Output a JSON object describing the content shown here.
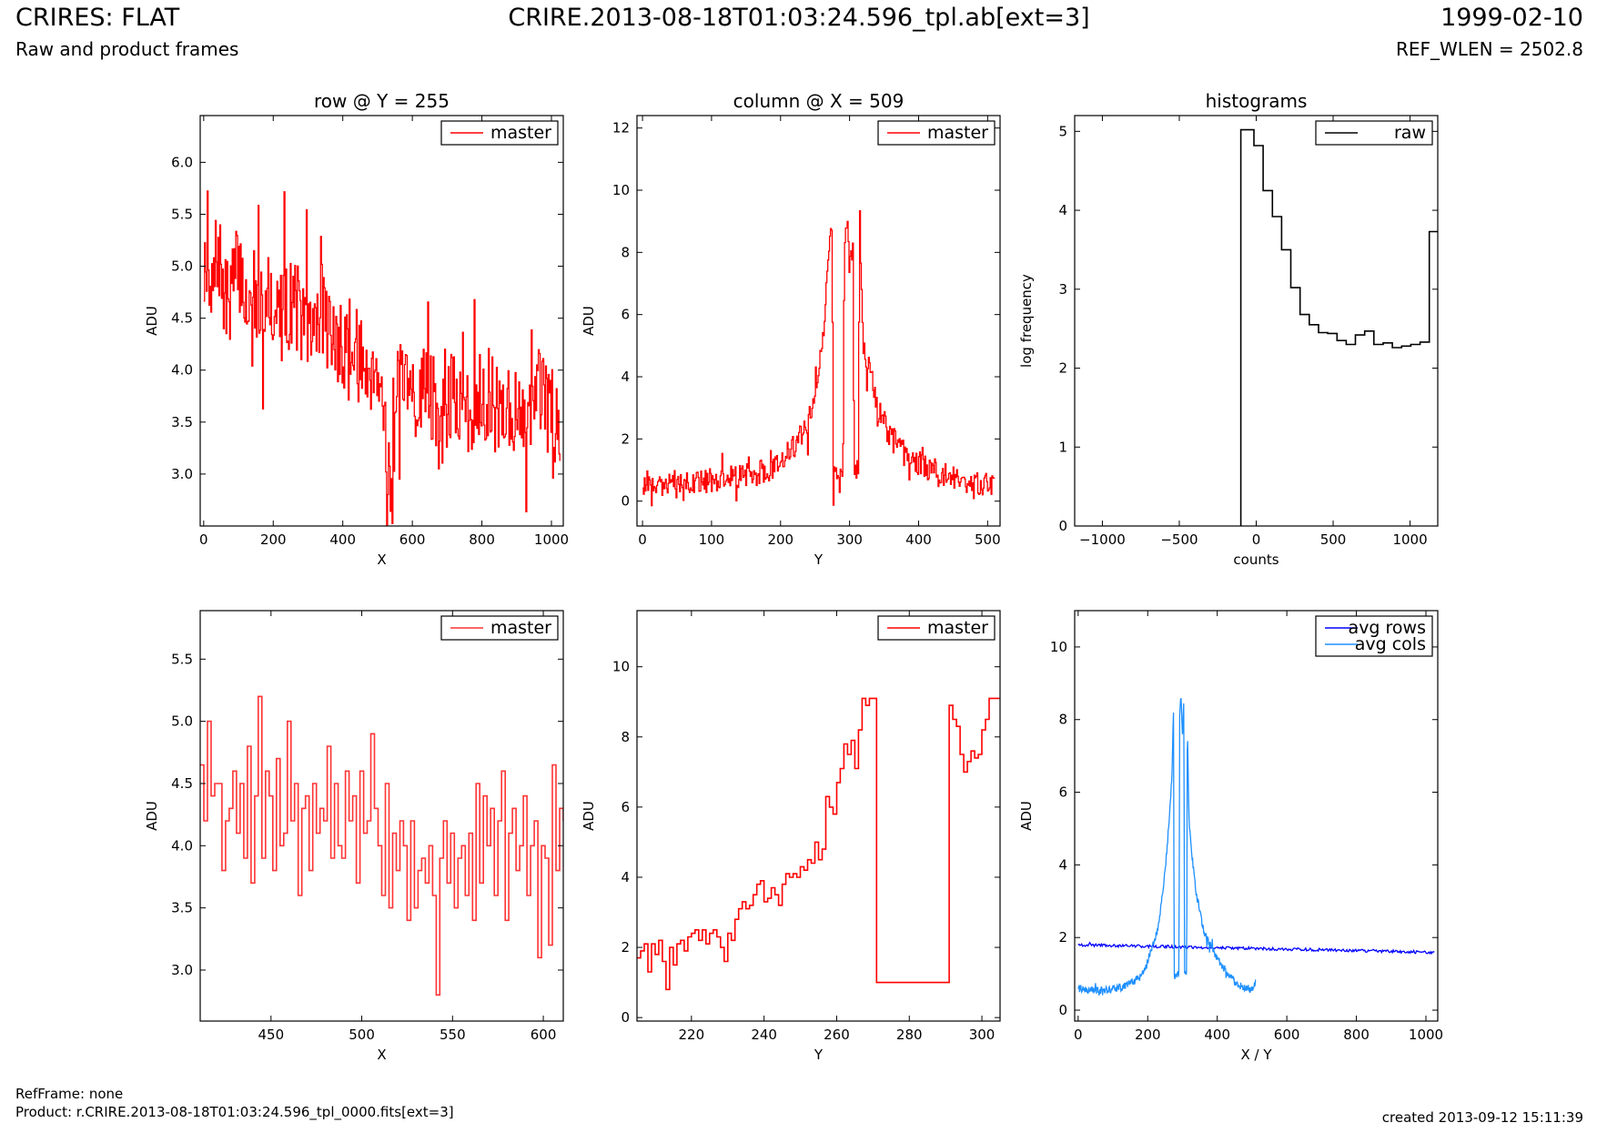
{
  "header": {
    "title": "CRIRES: FLAT",
    "subtitle": "Raw and product frames",
    "center_title": "CRIRE.2013-08-18T01:03:24.596_tpl.ab[ext=3]",
    "date": "1999-02-10",
    "ref_wlen": "REF_WLEN = 2502.8"
  },
  "footer": {
    "ref_frame": "RefFrame: none",
    "product": "Product: r.CRIRE.2013-08-18T01:03:24.596_tpl_0000.fits[ext=3]",
    "created": "created 2013-09-12 15:11:39"
  },
  "colors": {
    "master": "#ff0000",
    "raw": "#000000",
    "avg_rows": "#0000ff",
    "avg_cols": "#1e90ff"
  },
  "chart_data": [
    {
      "id": "row",
      "type": "line",
      "title": "row @ Y = 255",
      "xlabel": "X",
      "ylabel": "ADU",
      "xlim": [
        -10,
        1034
      ],
      "ylim": [
        2.5,
        6.45
      ],
      "xticks": [
        0,
        200,
        400,
        600,
        800,
        1000
      ],
      "yticks": [
        3.0,
        3.5,
        4.0,
        4.5,
        5.0,
        5.5,
        6.0
      ],
      "legend": "top-right",
      "series": [
        {
          "name": "master",
          "color": "#ff0000",
          "step": true,
          "x": [
            0,
            8,
            16,
            40,
            60,
            100,
            140,
            180,
            220,
            260,
            300,
            340,
            380,
            420,
            460,
            500,
            540,
            560,
            600,
            640,
            680,
            720,
            760,
            800,
            840,
            880,
            920,
            960,
            1000,
            1024
          ],
          "y": [
            4.9,
            5.6,
            4.5,
            5.2,
            4.6,
            5.0,
            4.4,
            4.8,
            4.5,
            4.7,
            4.3,
            4.6,
            4.2,
            4.3,
            4.0,
            4.1,
            2.8,
            3.9,
            3.6,
            4.0,
            3.4,
            3.8,
            3.5,
            3.9,
            3.6,
            3.7,
            3.4,
            3.8,
            3.6,
            3.5
          ],
          "band": [
            0.45,
            0.8
          ]
        }
      ]
    },
    {
      "id": "column",
      "type": "line",
      "title": "column @ X = 509",
      "xlabel": "Y",
      "ylabel": "ADU",
      "xlim": [
        -8,
        518
      ],
      "ylim": [
        -0.8,
        12.4
      ],
      "xticks": [
        0,
        100,
        200,
        300,
        400,
        500
      ],
      "yticks": [
        0,
        2,
        4,
        6,
        8,
        10,
        12
      ],
      "legend": "top-right",
      "series": [
        {
          "name": "master",
          "color": "#ff0000",
          "step": true,
          "x": [
            0,
            40,
            80,
            120,
            150,
            180,
            200,
            220,
            240,
            250,
            260,
            265,
            270,
            274,
            276,
            290,
            292,
            296,
            300,
            304,
            306,
            312,
            314,
            318,
            320,
            330,
            340,
            360,
            380,
            400,
            420,
            440,
            460,
            480,
            510
          ],
          "y": [
            0.6,
            0.5,
            0.6,
            0.7,
            0.8,
            1.0,
            1.3,
            1.8,
            2.5,
            3.5,
            5.0,
            6.5,
            8.0,
            9.0,
            1.0,
            1.0,
            8.5,
            9.0,
            8.0,
            8.8,
            1.0,
            1.0,
            9.6,
            5.5,
            5.0,
            4.0,
            3.0,
            2.0,
            1.5,
            1.2,
            1.0,
            0.8,
            0.7,
            0.6,
            0.6
          ],
          "band": [
            0.4,
            0.8
          ]
        }
      ]
    },
    {
      "id": "histograms",
      "type": "line",
      "title": "histograms",
      "xlabel": "counts",
      "ylabel": "log frequency",
      "xlim": [
        -1180,
        1180
      ],
      "ylim": [
        0,
        5.2
      ],
      "xticks": [
        -1000,
        -500,
        0,
        500,
        1000
      ],
      "yticks": [
        0,
        1,
        2,
        3,
        4,
        5
      ],
      "legend": "top-right",
      "series": [
        {
          "name": "raw",
          "color": "#000000",
          "step": true,
          "x": [
            -100,
            -100,
            -15,
            45,
            105,
            165,
            225,
            285,
            345,
            405,
            465,
            525,
            585,
            645,
            705,
            765,
            825,
            885,
            945,
            1005,
            1065,
            1125,
            1180
          ],
          "y": [
            0,
            5.02,
            4.82,
            4.25,
            3.92,
            3.5,
            3.02,
            2.68,
            2.55,
            2.45,
            2.44,
            2.35,
            2.3,
            2.42,
            2.47,
            2.3,
            2.32,
            2.26,
            2.28,
            2.3,
            2.33,
            3.73,
            3.73
          ]
        }
      ]
    },
    {
      "id": "row-zoom",
      "type": "line",
      "title": "",
      "xlabel": "X",
      "ylabel": "ADU",
      "xlim": [
        411,
        611
      ],
      "ylim": [
        2.59,
        5.89
      ],
      "xticks": [
        450,
        500,
        550,
        600
      ],
      "yticks": [
        3.0,
        3.5,
        4.0,
        4.5,
        5.0,
        5.5
      ],
      "legend": "top-right",
      "series": [
        {
          "name": "master",
          "color": "#ff3333",
          "step": true,
          "x": [
            411,
            413,
            415,
            417,
            419,
            421,
            423,
            425,
            427,
            429,
            431,
            433,
            435,
            437,
            439,
            441,
            443,
            445,
            447,
            449,
            451,
            453,
            455,
            457,
            459,
            461,
            463,
            465,
            467,
            469,
            471,
            473,
            475,
            477,
            479,
            481,
            483,
            485,
            487,
            489,
            491,
            493,
            495,
            497,
            499,
            501,
            503,
            505,
            507,
            509,
            511,
            513,
            515,
            517,
            519,
            521,
            523,
            525,
            527,
            529,
            531,
            533,
            535,
            537,
            539,
            541,
            543,
            545,
            547,
            549,
            551,
            553,
            555,
            557,
            559,
            561,
            563,
            565,
            567,
            569,
            571,
            573,
            575,
            577,
            579,
            581,
            583,
            585,
            587,
            589,
            591,
            593,
            595,
            597,
            599,
            601,
            603,
            605,
            607,
            609,
            611
          ],
          "y": [
            4.65,
            4.2,
            5.0,
            4.4,
            4.5,
            4.5,
            3.8,
            4.2,
            4.3,
            4.6,
            4.1,
            4.5,
            3.9,
            4.8,
            3.7,
            4.4,
            5.2,
            3.9,
            4.6,
            4.4,
            3.8,
            4.7,
            4.0,
            4.1,
            5.0,
            4.2,
            4.5,
            3.6,
            4.3,
            4.4,
            3.8,
            4.5,
            4.1,
            4.3,
            4.2,
            4.8,
            3.9,
            4.5,
            4.0,
            3.9,
            4.6,
            4.2,
            4.4,
            3.7,
            4.6,
            4.1,
            4.2,
            4.9,
            4.3,
            4.0,
            3.6,
            4.5,
            3.5,
            4.1,
            3.8,
            4.2,
            4.0,
            3.4,
            4.2,
            3.5,
            3.8,
            3.9,
            3.7,
            4.0,
            3.6,
            2.8,
            3.9,
            4.2,
            3.7,
            4.1,
            3.5,
            3.9,
            4.0,
            3.6,
            4.1,
            3.4,
            4.5,
            3.7,
            4.4,
            4.0,
            4.3,
            3.6,
            4.2,
            4.6,
            3.4,
            4.1,
            4.3,
            3.8,
            4.0,
            4.4,
            3.6,
            4.0,
            4.2,
            3.1,
            4.0,
            3.9,
            3.2,
            4.65,
            3.8,
            4.3,
            4.2
          ]
        }
      ]
    },
    {
      "id": "column-zoom",
      "type": "line",
      "title": "",
      "xlabel": "Y",
      "ylabel": "ADU",
      "xlim": [
        205,
        305
      ],
      "ylim": [
        -0.1,
        11.6
      ],
      "xticks": [
        220,
        240,
        260,
        280,
        300
      ],
      "yticks": [
        0,
        2,
        4,
        6,
        8,
        10
      ],
      "legend": "top-right",
      "series": [
        {
          "name": "master",
          "color": "#ff0000",
          "step": true,
          "x": [
            205,
            206,
            207,
            208,
            209,
            210,
            211,
            212,
            213,
            214,
            215,
            216,
            217,
            218,
            219,
            220,
            221,
            222,
            223,
            224,
            225,
            226,
            227,
            228,
            229,
            230,
            231,
            232,
            233,
            234,
            235,
            236,
            237,
            238,
            239,
            240,
            241,
            242,
            243,
            244,
            245,
            246,
            247,
            248,
            249,
            250,
            251,
            252,
            253,
            254,
            255,
            256,
            257,
            258,
            259,
            260,
            261,
            262,
            263,
            264,
            265,
            266,
            267,
            268,
            269,
            270,
            271,
            272,
            273,
            274,
            275,
            276,
            277,
            278,
            279,
            280,
            281,
            282,
            283,
            284,
            285,
            286,
            287,
            288,
            289,
            290,
            291,
            292,
            293,
            294,
            295,
            296,
            297,
            298,
            299,
            300,
            301,
            302,
            303,
            304,
            305
          ],
          "y": [
            1.7,
            1.9,
            2.1,
            1.3,
            2.1,
            1.8,
            2.2,
            1.6,
            0.8,
            2.0,
            1.5,
            2.1,
            2.2,
            1.9,
            2.3,
            2.4,
            2.5,
            2.2,
            2.5,
            2.1,
            2.4,
            2.5,
            2.3,
            2.0,
            1.6,
            2.4,
            2.2,
            2.8,
            3.1,
            3.3,
            3.1,
            3.2,
            3.5,
            3.8,
            3.9,
            3.3,
            3.4,
            3.7,
            3.5,
            3.2,
            3.8,
            4.1,
            4.0,
            4.1,
            4.0,
            4.3,
            4.2,
            4.5,
            4.4,
            5.0,
            4.5,
            4.8,
            6.3,
            6.0,
            5.8,
            6.7,
            7.1,
            7.8,
            7.5,
            7.9,
            7.1,
            8.2,
            9.1,
            8.9,
            9.1,
            9.1,
            1.0,
            1.0,
            1.0,
            1.0,
            1.0,
            1.0,
            1.0,
            1.0,
            1.0,
            1.0,
            1.0,
            1.0,
            1.0,
            1.0,
            1.0,
            1.0,
            1.0,
            1.0,
            1.0,
            1.0,
            8.9,
            8.5,
            8.3,
            7.5,
            7.0,
            7.3,
            7.6,
            7.4,
            7.5,
            8.2,
            8.5,
            9.1,
            9.1,
            9.1,
            9.1
          ]
        }
      ]
    },
    {
      "id": "averages",
      "type": "line",
      "title": "",
      "xlabel": "X / Y",
      "ylabel": "ADU",
      "xlim": [
        -10,
        1034
      ],
      "ylim": [
        -0.3,
        11.0
      ],
      "xticks": [
        0,
        200,
        400,
        600,
        800,
        1000
      ],
      "yticks": [
        0,
        2,
        4,
        6,
        8,
        10
      ],
      "legend": "top-right",
      "series": [
        {
          "name": "avg rows",
          "color": "#0000ff",
          "x": [
            0,
            100,
            200,
            300,
            400,
            500,
            600,
            700,
            800,
            900,
            1024
          ],
          "y": [
            1.8,
            1.78,
            1.76,
            1.74,
            1.72,
            1.7,
            1.68,
            1.66,
            1.64,
            1.62,
            1.58
          ],
          "band": [
            0.04,
            0.05
          ]
        },
        {
          "name": "avg cols",
          "color": "#1e90ff",
          "x": [
            0,
            40,
            80,
            120,
            150,
            180,
            200,
            210,
            220,
            230,
            240,
            250,
            260,
            270,
            274,
            276,
            290,
            292,
            296,
            300,
            304,
            306,
            312,
            314,
            318,
            320,
            330,
            340,
            360,
            380,
            400,
            420,
            440,
            460,
            480,
            500,
            511
          ],
          "y": [
            0.6,
            0.55,
            0.55,
            0.6,
            0.75,
            0.95,
            1.3,
            1.7,
            1.9,
            2.3,
            3.0,
            3.8,
            5.0,
            6.5,
            8.5,
            1.0,
            1.0,
            8.2,
            8.6,
            7.5,
            8.6,
            1.0,
            1.0,
            8.0,
            5.5,
            5.0,
            4.0,
            3.2,
            2.2,
            1.8,
            1.4,
            1.1,
            0.9,
            0.7,
            0.6,
            0.55,
            0.8
          ],
          "band": [
            0.1,
            0.25
          ]
        }
      ]
    }
  ]
}
